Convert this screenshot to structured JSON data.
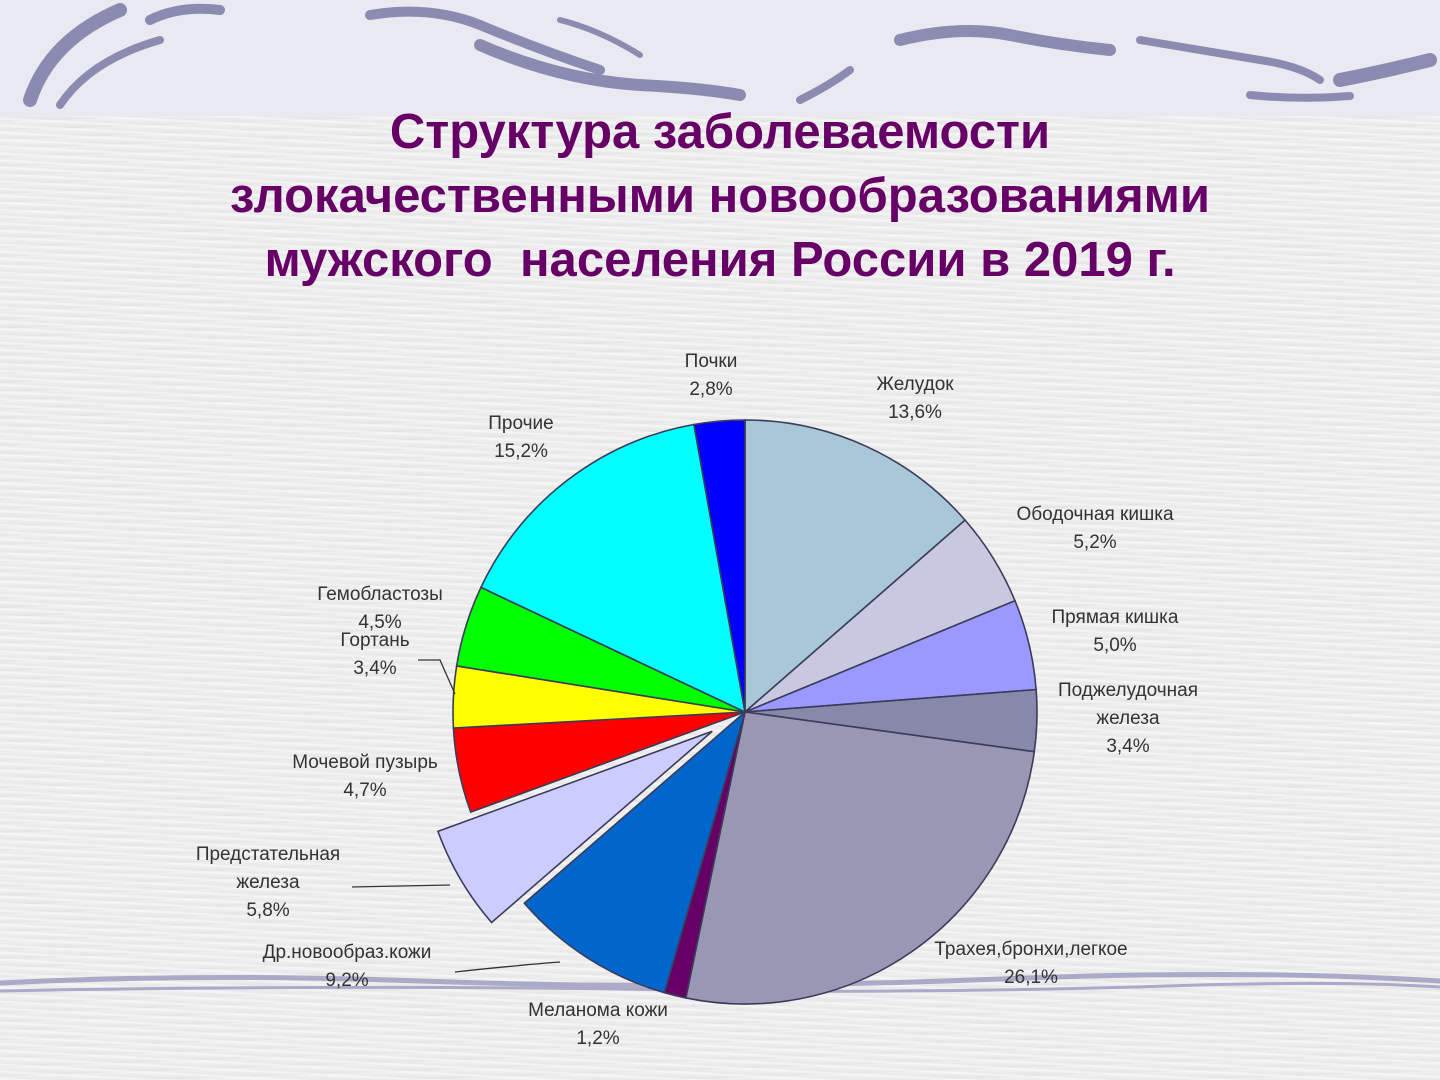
{
  "title_lines": [
    "Структура заболеваемости",
    "злокачественными новообразованиями",
    "мужского  населения России в 2019 г."
  ],
  "chart_data": {
    "type": "pie",
    "title": "Структура заболеваемости злокачественными новообразованиями мужского  населения России в 2019 г.",
    "start": "12 o'clock",
    "direction": "clockwise",
    "slices": [
      {
        "label_lines": [
          "Желудок",
          "13,6%"
        ],
        "value": 13.6,
        "color": "#a8c8d8"
      },
      {
        "label_lines": [
          "Ободочная кишка",
          "5,2%"
        ],
        "value": 5.2,
        "color": "#c8c8e0"
      },
      {
        "label_lines": [
          "Прямая кишка",
          "5,0%"
        ],
        "value": 5.0,
        "color": "#9999ff"
      },
      {
        "label_lines": [
          "Поджелудочная",
          "железа",
          "3,4%"
        ],
        "value": 3.4,
        "color": "#8888aa"
      },
      {
        "label_lines": [
          "Трахея,бронхи,легкое",
          "26,1%"
        ],
        "value": 26.1,
        "color": "#9898b4"
      },
      {
        "label_lines": [
          "Меланома кожи",
          "1,2%"
        ],
        "value": 1.2,
        "color": "#660066"
      },
      {
        "label_lines": [
          "Др.новообраз.кожи",
          "9,2%"
        ],
        "value": 9.2,
        "color": "#0066cc"
      },
      {
        "label_lines": [
          "Предстательная",
          "железа",
          "5,8%"
        ],
        "value": 5.8,
        "color": "#ccccff",
        "exploded": true
      },
      {
        "label_lines": [
          "Мочевой пузырь",
          "4,7%"
        ],
        "value": 4.7,
        "color": "#ff0000"
      },
      {
        "label_lines": [
          "Гортань",
          "3,4%"
        ],
        "value": 3.4,
        "color": "#ffff00"
      },
      {
        "label_lines": [
          "Гемобластозы",
          "4,5%"
        ],
        "value": 4.5,
        "color": "#00ff00"
      },
      {
        "label_lines": [
          "Прочие",
          "15,2%"
        ],
        "value": 15.2,
        "color": "#00ffff"
      },
      {
        "label_lines": [
          "Почки",
          "2,8%"
        ],
        "value": 2.8,
        "color": "#0000ff"
      }
    ]
  }
}
